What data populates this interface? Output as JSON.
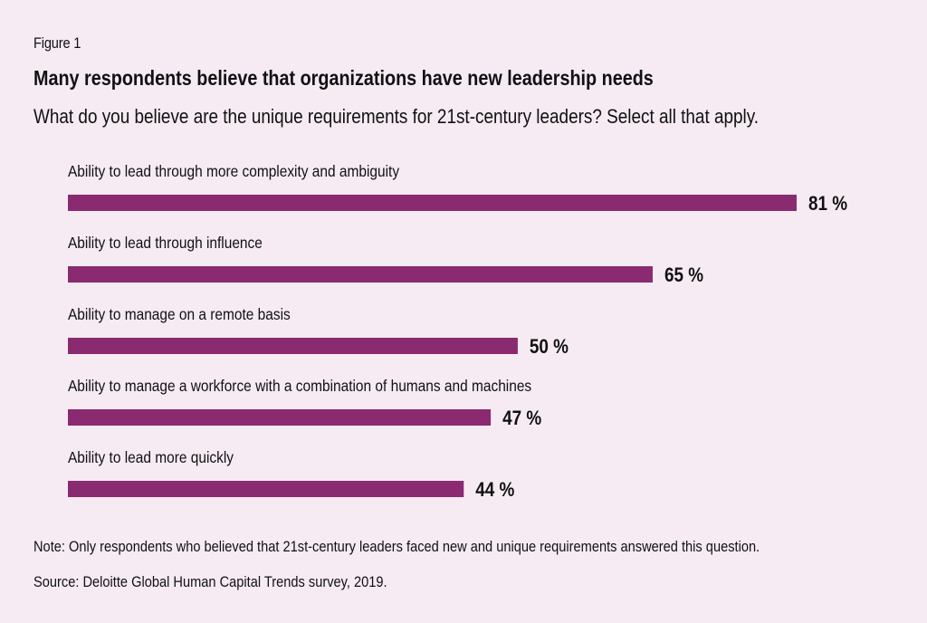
{
  "figure_label": "Figure 1",
  "colors": {
    "background": "#f6ebf3",
    "bar": "#8a2a70",
    "text": "#111111"
  },
  "chart_data": {
    "type": "bar",
    "orientation": "horizontal",
    "title": "Many respondents believe that organizations have new leadership needs",
    "subtitle": "What do you believe are the unique requirements for 21st-century leaders? Select all that apply.",
    "categories": [
      "Ability to lead through more complexity and ambiguity",
      "Ability to lead through influence",
      "Ability to manage on a remote basis",
      "Ability to manage a workforce with a combination of humans and machines",
      "Ability to lead more quickly"
    ],
    "values": [
      81,
      65,
      50,
      47,
      44
    ],
    "value_labels": [
      "81 %",
      "65 %",
      "50 %",
      "47 %",
      "44 %"
    ],
    "unit": "%",
    "xlim": [
      0,
      100
    ],
    "grid": false,
    "legend": "none"
  },
  "note": "Note: Only respondents who believed that 21st-century leaders faced new and unique requirements answered this question.",
  "source": "Source: Deloitte Global Human Capital Trends survey, 2019."
}
